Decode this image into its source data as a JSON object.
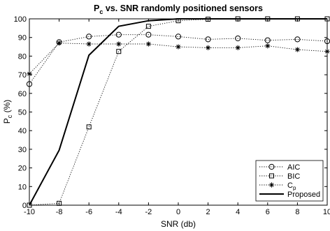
{
  "chart_data": {
    "type": "line",
    "title": {
      "main": "P",
      "sub": "c",
      "rest": " vs. SNR randomly positioned sensors"
    },
    "xlabel": "SNR (db)",
    "ylabel": {
      "main": "P",
      "sub": "c",
      "rest": " (%)"
    },
    "xlim": [
      -10,
      10
    ],
    "ylim": [
      0,
      100
    ],
    "xticks": [
      -10,
      -8,
      -6,
      -4,
      -2,
      0,
      2,
      4,
      6,
      8,
      10
    ],
    "yticks": [
      0,
      10,
      20,
      30,
      40,
      50,
      60,
      70,
      80,
      90,
      100
    ],
    "grid": false,
    "legend_position": "bottom-right",
    "series": [
      {
        "name": "AIC",
        "legend_main": "AIC",
        "legend_sub": "",
        "style": "dotted",
        "marker": "circle",
        "color": "#000000",
        "x": [
          -10,
          -8,
          -6,
          -4,
          -2,
          0,
          2,
          4,
          6,
          8,
          10
        ],
        "y": [
          65,
          87.5,
          90.5,
          91.5,
          91.5,
          90.5,
          89,
          89.5,
          88.5,
          89,
          88
        ]
      },
      {
        "name": "BIC",
        "legend_main": "BIC",
        "legend_sub": "",
        "style": "dotted",
        "marker": "square",
        "color": "#000000",
        "x": [
          -10,
          -8,
          -6,
          -4,
          -2,
          0,
          2,
          4,
          6,
          8,
          10
        ],
        "y": [
          0,
          1,
          42,
          82.5,
          96,
          99,
          99.8,
          100,
          100,
          100,
          100
        ]
      },
      {
        "name": "Cp",
        "legend_main": "C",
        "legend_sub": "p",
        "style": "dotted",
        "marker": "star",
        "color": "#000000",
        "x": [
          -10,
          -8,
          -6,
          -4,
          -2,
          0,
          2,
          4,
          6,
          8,
          10
        ],
        "y": [
          70.5,
          87,
          86.5,
          86.5,
          86.5,
          85,
          84.5,
          84.5,
          85.5,
          83.5,
          82.5
        ]
      },
      {
        "name": "Proposed",
        "legend_main": "Proposed",
        "legend_sub": "",
        "style": "solid",
        "marker": "none",
        "color": "#000000",
        "x": [
          -10,
          -8,
          -6,
          -4,
          -2,
          0,
          2,
          4,
          6,
          8,
          10
        ],
        "y": [
          0,
          29.5,
          80.5,
          96,
          99,
          100,
          100,
          100,
          100,
          100,
          100
        ]
      }
    ]
  }
}
